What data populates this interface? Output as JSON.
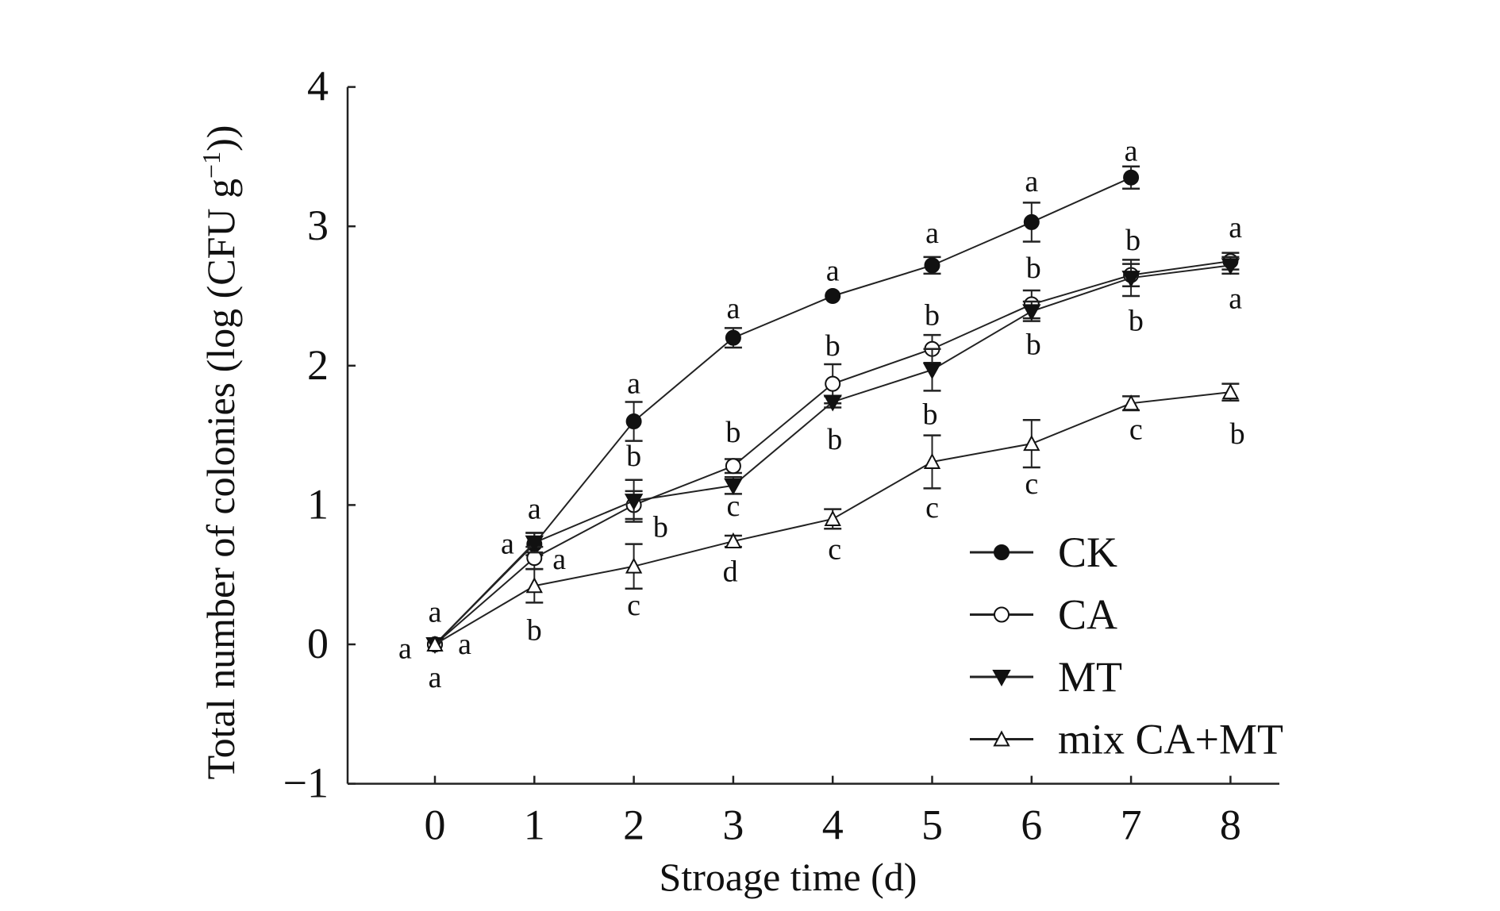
{
  "chart_data": {
    "type": "line",
    "title": "",
    "xlabel": "Stroage time (d)",
    "ylabel": "Total number of colonies (log (CFU g",
    "ylabel_sup": "−1",
    "ylabel_end": "))",
    "xlim": [
      -0.9,
      8.6
    ],
    "ylim": [
      -1,
      4
    ],
    "xticks": [
      0,
      1,
      2,
      3,
      4,
      5,
      6,
      7,
      8
    ],
    "yticks": [
      -1,
      0,
      1,
      2,
      3,
      4
    ],
    "ytick_labels": [
      "−1",
      "0",
      "1",
      "2",
      "3",
      "4"
    ],
    "grid": false,
    "legend_position": "bottom-right",
    "series": [
      {
        "name": "CK",
        "marker": "filled-circle",
        "x": [
          0,
          1,
          2,
          3,
          4,
          5,
          6,
          7
        ],
        "values": [
          0,
          0.72,
          1.6,
          2.2,
          2.5,
          2.72,
          3.03,
          3.35
        ],
        "errors": [
          0.02,
          0.08,
          0.14,
          0.07,
          0.03,
          0.06,
          0.14,
          0.08
        ]
      },
      {
        "name": "CA",
        "marker": "open-circle",
        "x": [
          0,
          1,
          2,
          3,
          4,
          5,
          6,
          7,
          8
        ],
        "values": [
          0,
          0.62,
          1.0,
          1.28,
          1.87,
          2.12,
          2.44,
          2.65,
          2.75
        ],
        "errors": [
          0.02,
          0.08,
          0.1,
          0.05,
          0.14,
          0.1,
          0.1,
          0.08,
          0.06
        ]
      },
      {
        "name": "MT",
        "marker": "filled-triangle-down",
        "x": [
          0,
          1,
          2,
          3,
          4,
          5,
          6,
          7,
          8
        ],
        "values": [
          0,
          0.73,
          1.03,
          1.14,
          1.74,
          1.97,
          2.39,
          2.63,
          2.72
        ],
        "errors": [
          0.02,
          0.07,
          0.15,
          0.06,
          0.04,
          0.15,
          0.07,
          0.13,
          0.06
        ]
      },
      {
        "name": "mix CA+MT",
        "marker": "open-triangle-up",
        "x": [
          0,
          1,
          2,
          3,
          4,
          5,
          6,
          7,
          8
        ],
        "values": [
          0,
          0.42,
          0.56,
          0.74,
          0.9,
          1.31,
          1.44,
          1.73,
          1.81
        ],
        "errors": [
          0.02,
          0.12,
          0.16,
          0.04,
          0.07,
          0.19,
          0.17,
          0.05,
          0.06
        ]
      }
    ],
    "annotations": [
      {
        "x": 0,
        "y": 0.23,
        "text": "a"
      },
      {
        "x": -0.3,
        "y": -0.03,
        "text": "a"
      },
      {
        "x": 0.3,
        "y": 0,
        "text": "a"
      },
      {
        "x": 0,
        "y": -0.24,
        "text": "a"
      },
      {
        "x": 1,
        "y": 0.97,
        "text": "a"
      },
      {
        "x": 0.73,
        "y": 0.72,
        "text": "a"
      },
      {
        "x": 1.25,
        "y": 0.61,
        "text": "a"
      },
      {
        "x": 1,
        "y": 0.1,
        "text": "b"
      },
      {
        "x": 2,
        "y": 1.87,
        "text": "a"
      },
      {
        "x": 2,
        "y": 1.35,
        "text": "b"
      },
      {
        "x": 2.27,
        "y": 0.84,
        "text": "b"
      },
      {
        "x": 2,
        "y": 0.28,
        "text": "c"
      },
      {
        "x": 3,
        "y": 2.41,
        "text": "a"
      },
      {
        "x": 3,
        "y": 1.52,
        "text": "b"
      },
      {
        "x": 3,
        "y": 0.99,
        "text": "c"
      },
      {
        "x": 2.97,
        "y": 0.52,
        "text": "d"
      },
      {
        "x": 4,
        "y": 2.68,
        "text": "a"
      },
      {
        "x": 4,
        "y": 2.14,
        "text": "b"
      },
      {
        "x": 4.02,
        "y": 1.47,
        "text": "b"
      },
      {
        "x": 4.02,
        "y": 0.68,
        "text": "c"
      },
      {
        "x": 5,
        "y": 2.95,
        "text": "a"
      },
      {
        "x": 5,
        "y": 2.36,
        "text": "b"
      },
      {
        "x": 4.98,
        "y": 1.65,
        "text": "b"
      },
      {
        "x": 5,
        "y": 0.98,
        "text": "c"
      },
      {
        "x": 6,
        "y": 3.32,
        "text": "a"
      },
      {
        "x": 6.02,
        "y": 2.7,
        "text": "b"
      },
      {
        "x": 6.02,
        "y": 2.15,
        "text": "b"
      },
      {
        "x": 6,
        "y": 1.15,
        "text": "c"
      },
      {
        "x": 7,
        "y": 3.54,
        "text": "a"
      },
      {
        "x": 7.02,
        "y": 2.9,
        "text": "b"
      },
      {
        "x": 7.05,
        "y": 2.32,
        "text": "b"
      },
      {
        "x": 7.05,
        "y": 1.54,
        "text": "c"
      },
      {
        "x": 8.05,
        "y": 2.99,
        "text": "a"
      },
      {
        "x": 8.05,
        "y": 2.48,
        "text": "a"
      },
      {
        "x": 8.07,
        "y": 1.51,
        "text": "b"
      }
    ]
  }
}
